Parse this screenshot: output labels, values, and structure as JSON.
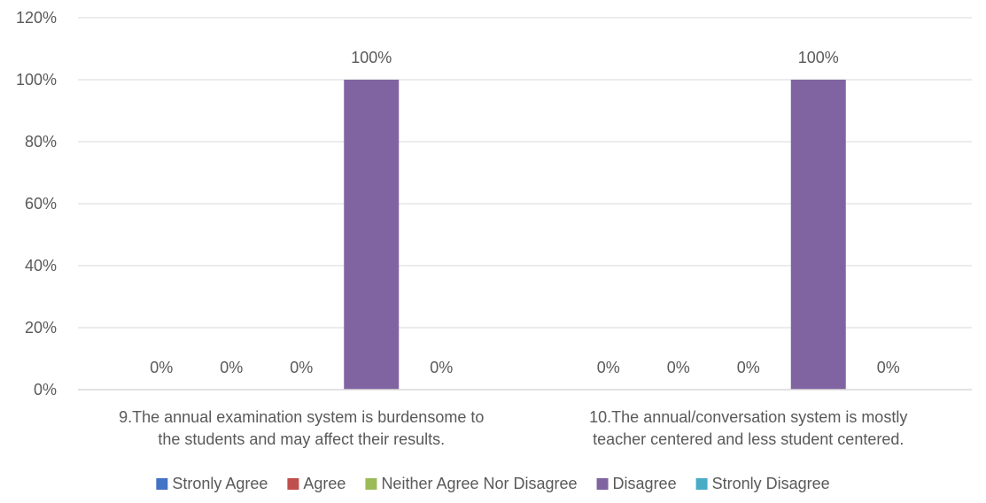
{
  "chart_data": {
    "type": "bar",
    "categories": [
      [
        "9.The annual examination system is burdensome to",
        "the students and may affect their results."
      ],
      [
        "10.The annual/conversation system is mostly",
        "teacher centered and less student centered."
      ]
    ],
    "series": [
      {
        "name": "Stronly Agree",
        "color": "#4472C4",
        "values": [
          0,
          0
        ],
        "labels": [
          "0%",
          "0%"
        ]
      },
      {
        "name": "Agree",
        "color": "#C0504D",
        "values": [
          0,
          0
        ],
        "labels": [
          "0%",
          "0%"
        ]
      },
      {
        "name": "Neither Agree Nor Disagree",
        "color": "#9BBB59",
        "values": [
          0,
          0
        ],
        "labels": [
          "0%",
          "0%"
        ]
      },
      {
        "name": "Disagree",
        "color": "#8064A2",
        "values": [
          100,
          100
        ],
        "labels": [
          "100%",
          "100%"
        ]
      },
      {
        "name": "Stronly Disagree",
        "color": "#4BACC6",
        "values": [
          0,
          0
        ],
        "labels": [
          "0%",
          "0%"
        ]
      }
    ],
    "ylim": [
      0,
      120
    ],
    "yticks": [
      "0%",
      "20%",
      "40%",
      "60%",
      "80%",
      "100%",
      "120%"
    ],
    "grid": true,
    "legend_position": "bottom",
    "grid_color": "#D9D9D9",
    "text_color": "#595959",
    "xlabel": "",
    "ylabel": "",
    "title": ""
  }
}
